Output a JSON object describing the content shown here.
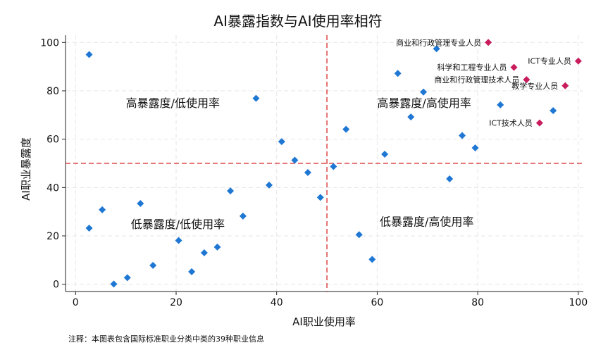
{
  "chart_data": {
    "type": "scatter",
    "title": "AI暴露指数与AI使用率相符",
    "xlabel": "AI职业使用率",
    "ylabel": "AI职业暴露度",
    "xlim": [
      -2,
      101
    ],
    "ylim": [
      -3,
      103
    ],
    "x_ticks": [
      "0",
      "20",
      "40",
      "60",
      "80",
      "100"
    ],
    "y_ticks": [
      "0",
      "20",
      "40",
      "60",
      "80",
      "100"
    ],
    "grid": true,
    "reference_lines": {
      "x": 50,
      "y": 50,
      "color": "#d62728",
      "style": "dashed"
    },
    "quadrant_labels": [
      {
        "text": "高暴露度/低使用率",
        "x": 10,
        "y": 75
      },
      {
        "text": "高暴露度/高使用率",
        "x": 60,
        "y": 75
      },
      {
        "text": "低暴露度/低使用率",
        "x": 11,
        "y": 25
      },
      {
        "text": "低暴露度/高使用率",
        "x": 60.5,
        "y": 26
      }
    ],
    "series": [
      {
        "marker_color": "#1f77d4",
        "marker": "diamond",
        "points": [
          [
            2.7,
            95
          ],
          [
            2.7,
            23.2
          ],
          [
            5.3,
            30.8
          ],
          [
            7.6,
            0.1
          ],
          [
            10.3,
            2.7
          ],
          [
            12.9,
            33.4
          ],
          [
            15.4,
            7.8
          ],
          [
            20.5,
            18.1
          ],
          [
            23.1,
            5.2
          ],
          [
            25.6,
            13
          ],
          [
            28.2,
            15.4
          ],
          [
            30.8,
            38.6
          ],
          [
            33.3,
            28.2
          ],
          [
            35.9,
            76.9
          ],
          [
            38.5,
            41
          ],
          [
            41,
            59
          ],
          [
            43.6,
            51.3
          ],
          [
            46.2,
            46.2
          ],
          [
            48.7,
            35.9
          ],
          [
            51.3,
            48.7
          ],
          [
            53.8,
            64.1
          ],
          [
            56.4,
            20.5
          ],
          [
            59,
            10.3
          ],
          [
            61.5,
            53.8
          ],
          [
            64.1,
            87.2
          ],
          [
            66.7,
            69.2
          ],
          [
            69.2,
            79.5
          ],
          [
            71.8,
            97.4
          ],
          [
            74.4,
            43.6
          ],
          [
            76.9,
            61.5
          ],
          [
            79.5,
            56.4
          ],
          [
            84.5,
            74.2
          ],
          [
            95,
            71.8
          ]
        ]
      },
      {
        "marker_color": "#c81c5c",
        "marker": "diamond",
        "points": [
          {
            "x": 82.1,
            "y": 100,
            "label": "商业和行政管理专业人员"
          },
          {
            "x": 100,
            "y": 92.3,
            "label": "ICT专业人员"
          },
          {
            "x": 87.2,
            "y": 89.7,
            "label": "科学和工程专业人员"
          },
          {
            "x": 89.7,
            "y": 84.6,
            "label": "商业和行政管理技术人员"
          },
          {
            "x": 97.4,
            "y": 82.1,
            "label": "教学专业人员"
          },
          {
            "x": 92.3,
            "y": 66.7,
            "label": "ICT技术人员"
          }
        ]
      }
    ],
    "note": "注释：本图表包含国际标准职业分类中类的39种职业信息"
  }
}
